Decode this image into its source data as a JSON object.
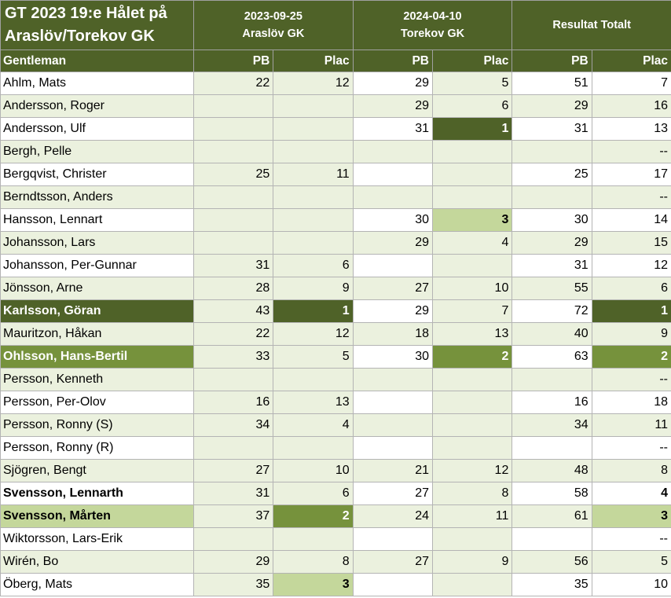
{
  "title_line1": "GT 2023 19:e Hålet på",
  "title_line2": "Araslöv/Torekov GK",
  "rounds": [
    {
      "date": "2023-09-25",
      "course": "Araslöv GK"
    },
    {
      "date": "2024-04-10",
      "course": "Torekov GK"
    }
  ],
  "total_header": "Resultat Totalt",
  "col_headers": {
    "name": "Gentleman",
    "pb1": "PB",
    "plac1": "Plac",
    "pb2": "PB",
    "plac2": "Plac",
    "pbt": "PB",
    "plact": "Plac"
  },
  "colors": {
    "header_dark_green": "#4f6228",
    "first_place": "#4f6228",
    "second_place": "#76923c",
    "third_place": "#c4d79b",
    "row_alt": "#ebf1de"
  },
  "rows": [
    {
      "name": "Ahlm, Mats",
      "pb1": "22",
      "plac1": "12",
      "pb2": "29",
      "plac2": "5",
      "pbt": "51",
      "plact": "7"
    },
    {
      "name": "Andersson, Roger",
      "pb1": "",
      "plac1": "",
      "pb2": "29",
      "plac2": "6",
      "pbt": "29",
      "plact": "16"
    },
    {
      "name": "Andersson, Ulf",
      "pb1": "",
      "plac1": "",
      "pb2": "31",
      "plac2": "1",
      "pbt": "31",
      "plact": "13"
    },
    {
      "name": "Bergh, Pelle",
      "pb1": "",
      "plac1": "",
      "pb2": "",
      "plac2": "",
      "pbt": "",
      "plact": "--"
    },
    {
      "name": "Bergqvist, Christer",
      "pb1": "25",
      "plac1": "11",
      "pb2": "",
      "plac2": "",
      "pbt": "25",
      "plact": "17"
    },
    {
      "name": "Berndtsson, Anders",
      "pb1": "",
      "plac1": "",
      "pb2": "",
      "plac2": "",
      "pbt": "",
      "plact": "--"
    },
    {
      "name": "Hansson, Lennart",
      "pb1": "",
      "plac1": "",
      "pb2": "30",
      "plac2": "3",
      "pbt": "30",
      "plact": "14"
    },
    {
      "name": "Johansson, Lars",
      "pb1": "",
      "plac1": "",
      "pb2": "29",
      "plac2": "4",
      "pbt": "29",
      "plact": "15"
    },
    {
      "name": "Johansson, Per-Gunnar",
      "pb1": "31",
      "plac1": "6",
      "pb2": "",
      "plac2": "",
      "pbt": "31",
      "plact": "12"
    },
    {
      "name": "Jönsson, Arne",
      "pb1": "28",
      "plac1": "9",
      "pb2": "27",
      "plac2": "10",
      "pbt": "55",
      "plact": "6"
    },
    {
      "name": "Karlsson, Göran",
      "pb1": "43",
      "plac1": "1",
      "pb2": "29",
      "plac2": "7",
      "pbt": "72",
      "plact": "1"
    },
    {
      "name": "Mauritzon, Håkan",
      "pb1": "22",
      "plac1": "12",
      "pb2": "18",
      "plac2": "13",
      "pbt": "40",
      "plact": "9"
    },
    {
      "name": "Ohlsson, Hans-Bertil",
      "pb1": "33",
      "plac1": "5",
      "pb2": "30",
      "plac2": "2",
      "pbt": "63",
      "plact": "2"
    },
    {
      "name": "Persson, Kenneth",
      "pb1": "",
      "plac1": "",
      "pb2": "",
      "plac2": "",
      "pbt": "",
      "plact": "--"
    },
    {
      "name": "Persson, Per-Olov",
      "pb1": "16",
      "plac1": "13",
      "pb2": "",
      "plac2": "",
      "pbt": "16",
      "plact": "18"
    },
    {
      "name": "Persson, Ronny (S)",
      "pb1": "34",
      "plac1": "4",
      "pb2": "",
      "plac2": "",
      "pbt": "34",
      "plact": "11"
    },
    {
      "name": "Persson, Ronny (R)",
      "pb1": "",
      "plac1": "",
      "pb2": "",
      "plac2": "",
      "pbt": "",
      "plact": "--"
    },
    {
      "name": "Sjögren, Bengt",
      "pb1": "27",
      "plac1": "10",
      "pb2": "21",
      "plac2": "12",
      "pbt": "48",
      "plact": "8"
    },
    {
      "name": "Svensson, Lennarth",
      "pb1": "31",
      "plac1": "6",
      "pb2": "27",
      "plac2": "8",
      "pbt": "58",
      "plact": "4"
    },
    {
      "name": "Svensson, Mårten",
      "pb1": "37",
      "plac1": "2",
      "pb2": "24",
      "plac2": "11",
      "pbt": "61",
      "plact": "3"
    },
    {
      "name": "Wiktorsson, Lars-Erik",
      "pb1": "",
      "plac1": "",
      "pb2": "",
      "plac2": "",
      "pbt": "",
      "plact": "--"
    },
    {
      "name": "Wirén, Bo",
      "pb1": "29",
      "plac1": "8",
      "pb2": "27",
      "plac2": "9",
      "pbt": "56",
      "plact": "5"
    },
    {
      "name": "Öberg, Mats",
      "pb1": "35",
      "plac1": "3",
      "pb2": "",
      "plac2": "",
      "pbt": "35",
      "plact": "10"
    }
  ]
}
